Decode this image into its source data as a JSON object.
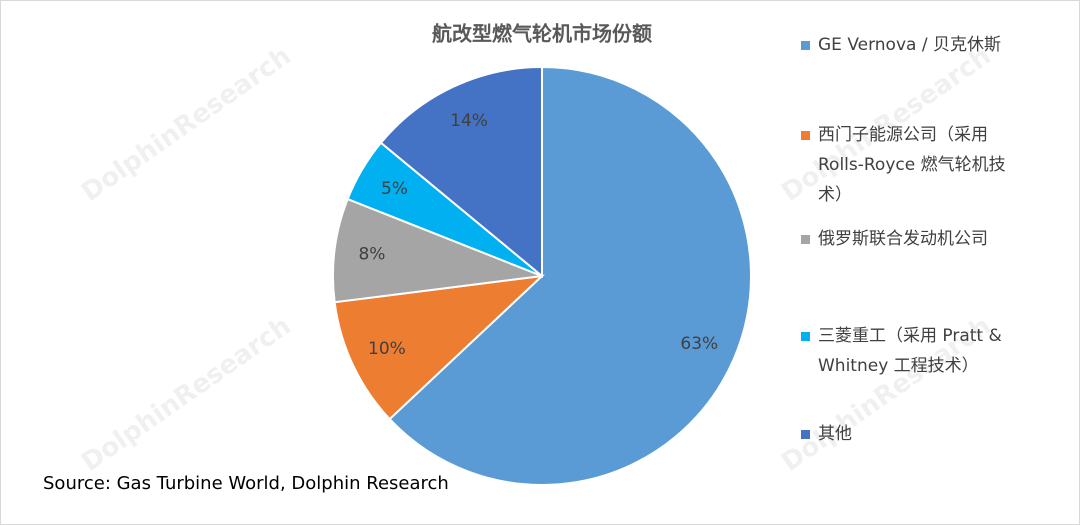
{
  "chart_data": {
    "type": "pie",
    "title": "航改型燃气轮机市场份额",
    "categories": [
      "GE Vernova / 贝克休斯",
      "西门子能源公司（采用 Rolls-Royce 燃气轮机技术）",
      "俄罗斯联合发动机公司",
      "三菱重工（采用 Pratt & Whitney 工程技术）",
      "其他"
    ],
    "values": [
      63,
      10,
      8,
      5,
      14
    ],
    "value_labels": [
      "63%",
      "10%",
      "8%",
      "5%",
      "14%"
    ],
    "colors": [
      "#5b9bd5",
      "#ed7d31",
      "#a5a5a5",
      "#00b0f0",
      "#4472c4"
    ],
    "legend": "right",
    "source": "Source: Gas Turbine World, Dolphin Research",
    "watermark": "DolphinResearch"
  }
}
